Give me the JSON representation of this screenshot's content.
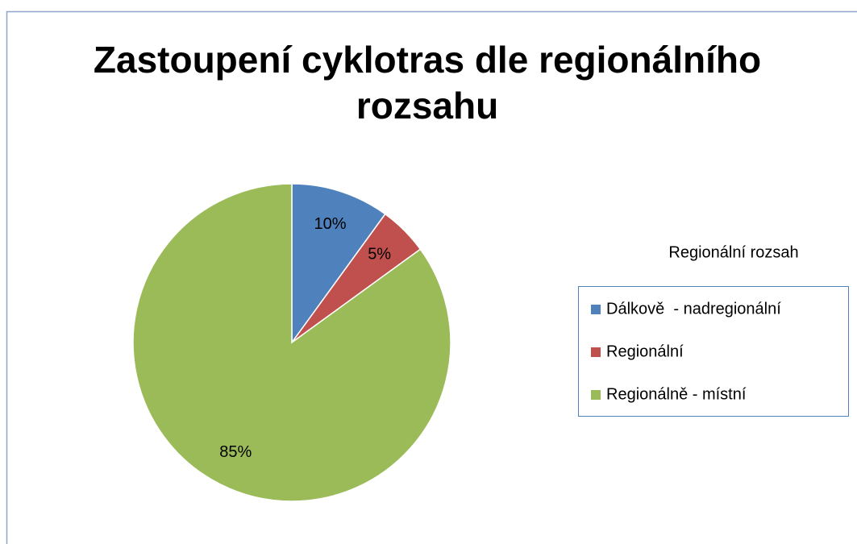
{
  "chart_data": {
    "type": "pie",
    "title": "Zastoupení cyklotras dle regionálního rozsahu",
    "categories": [
      "Dálkově  - nadregionální",
      "Regionální",
      "Regionálně - místní"
    ],
    "values": [
      10,
      5,
      85
    ],
    "value_labels": [
      "10%",
      "5%",
      "85%"
    ],
    "colors": [
      "#4f81bd",
      "#c0504d",
      "#9bbb59"
    ],
    "legend_title": "Regionální rozsah"
  }
}
